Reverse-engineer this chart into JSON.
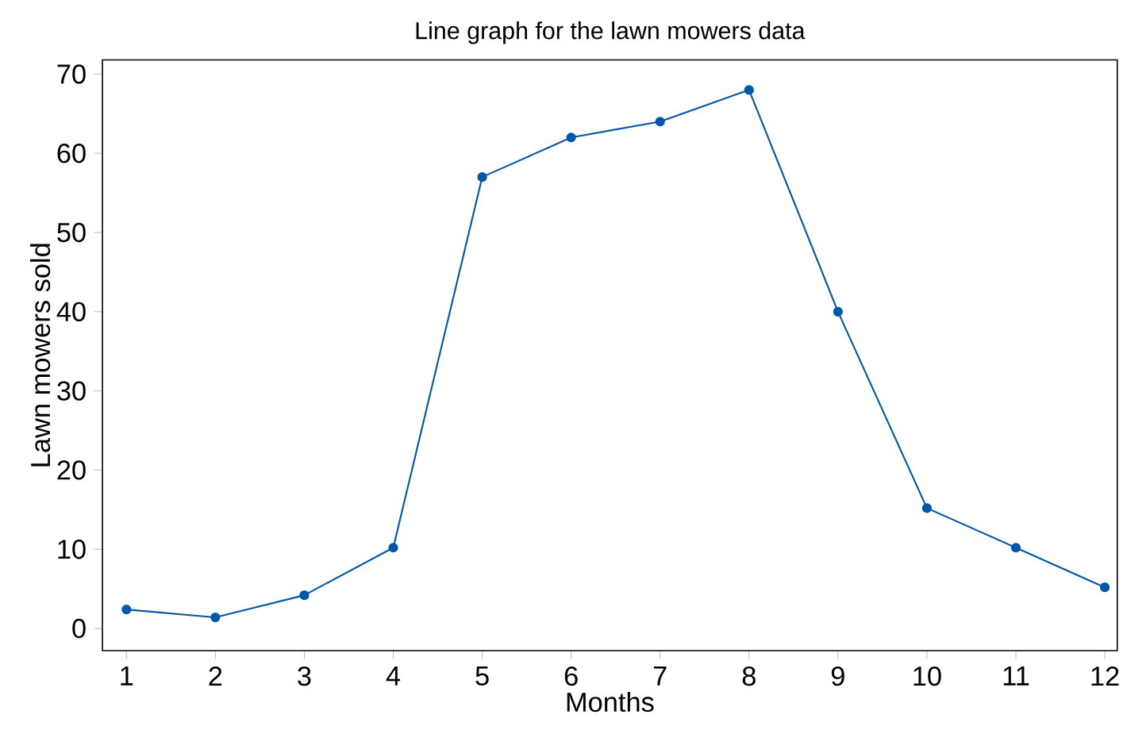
{
  "chart_data": {
    "type": "line",
    "title": "Line graph for the lawn mowers data",
    "xlabel": "Months",
    "ylabel": "Lawn mowers sold",
    "x": [
      1,
      2,
      3,
      4,
      5,
      6,
      7,
      8,
      9,
      10,
      11,
      12
    ],
    "values": [
      2.4,
      1.4,
      4.2,
      10.2,
      57,
      62,
      64,
      68,
      40,
      15.2,
      10.2,
      5.2
    ],
    "color": "#0057a8",
    "marker": "circle",
    "line_style": "solid",
    "grid": false,
    "xlim": [
      0.73,
      12.14
    ],
    "xticks": [
      1,
      2,
      3,
      4,
      5,
      6,
      7,
      8,
      9,
      10,
      11,
      12
    ],
    "ylim": [
      -2.8,
      71.8
    ],
    "yticks": [
      0,
      10,
      20,
      30,
      40,
      50,
      60,
      70
    ]
  }
}
